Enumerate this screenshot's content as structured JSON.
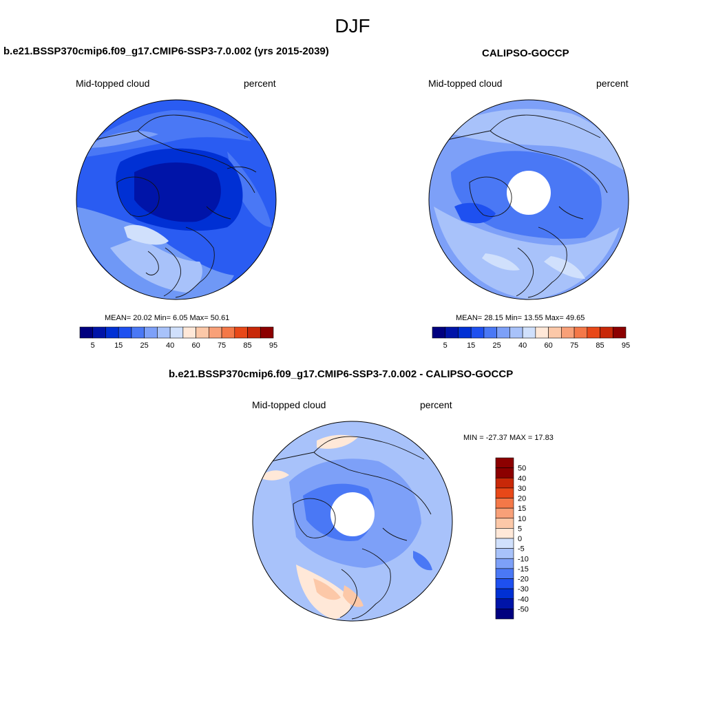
{
  "figure_title": "DJF",
  "colors": {
    "abs_palette": [
      "#00007f",
      "#0014a8",
      "#0030d4",
      "#1e50f0",
      "#4a78f5",
      "#7da0f8",
      "#a8c2fa",
      "#d0e0fc",
      "#ffe8d8",
      "#fcc8a8",
      "#f8a078",
      "#f47848",
      "#e84818",
      "#c82808",
      "#8c0000"
    ],
    "diff_palette": [
      "#00007f",
      "#0014a8",
      "#0030d4",
      "#1e50f0",
      "#4a78f5",
      "#7da0f8",
      "#a8c2fa",
      "#d0e0fc",
      "#ffe8d8",
      "#fcc8a8",
      "#f8a078",
      "#f47848",
      "#e84818",
      "#c82808",
      "#8c0000"
    ]
  },
  "panels": [
    {
      "title": "b.e21.BSSP370cmip6.f09_g17.CMIP6-SSP3-7.0.002 (yrs 2015-2039)",
      "left_label": "Mid-topped cloud",
      "right_label": "percent",
      "stats": "MEAN=  20.02  Min=   6.05  Max=  50.61",
      "colorbar_ticks": [
        "5",
        "15",
        "25",
        "40",
        "60",
        "75",
        "85",
        "95"
      ]
    },
    {
      "title": "CALIPSO-GOCCP",
      "left_label": "Mid-topped cloud",
      "right_label": "percent",
      "stats": "MEAN=  28.15  Min=  13.55  Max=  49.65",
      "colorbar_ticks": [
        "5",
        "15",
        "25",
        "40",
        "60",
        "75",
        "85",
        "95"
      ]
    },
    {
      "title": "b.e21.BSSP370cmip6.f09_g17.CMIP6-SSP3-7.0.002 - CALIPSO-GOCCP",
      "left_label": "Mid-topped cloud",
      "right_label": "percent",
      "stats": "MIN = -27.37 MAX =  17.83",
      "colorbar_ticks": [
        "50",
        "40",
        "30",
        "20",
        "15",
        "10",
        "5",
        "0",
        "-5",
        "-10",
        "-15",
        "-20",
        "-30",
        "-40",
        "-50"
      ]
    }
  ],
  "chart_data": [
    {
      "type": "heatmap",
      "projection": "north-polar-stereographic",
      "title": "b.e21.BSSP370cmip6.f09_g17.CMIP6-SSP3-7.0.002 (yrs 2015-2039)",
      "variable": "Mid-topped cloud",
      "units": "percent",
      "mean": 20.02,
      "min": 6.05,
      "max": 50.61,
      "levels": [
        5,
        10,
        15,
        20,
        25,
        30,
        40,
        50,
        60,
        70,
        75,
        80,
        85,
        90,
        95
      ],
      "colorbar_tick_labels": [
        5,
        15,
        25,
        40,
        60,
        75,
        85,
        95
      ]
    },
    {
      "type": "heatmap",
      "projection": "north-polar-stereographic",
      "title": "CALIPSO-GOCCP",
      "variable": "Mid-topped cloud",
      "units": "percent",
      "mean": 28.15,
      "min": 13.55,
      "max": 49.65,
      "missing_polar_cap": true,
      "levels": [
        5,
        10,
        15,
        20,
        25,
        30,
        40,
        50,
        60,
        70,
        75,
        80,
        85,
        90,
        95
      ],
      "colorbar_tick_labels": [
        5,
        15,
        25,
        40,
        60,
        75,
        85,
        95
      ]
    },
    {
      "type": "heatmap",
      "projection": "north-polar-stereographic",
      "title": "b.e21.BSSP370cmip6.f09_g17.CMIP6-SSP3-7.0.002 - CALIPSO-GOCCP",
      "variable": "Mid-topped cloud",
      "units": "percent",
      "min": -27.37,
      "max": 17.83,
      "missing_polar_cap": true,
      "levels": [
        -50,
        -40,
        -30,
        -20,
        -15,
        -10,
        -5,
        0,
        5,
        10,
        15,
        20,
        30,
        40,
        50
      ]
    }
  ]
}
